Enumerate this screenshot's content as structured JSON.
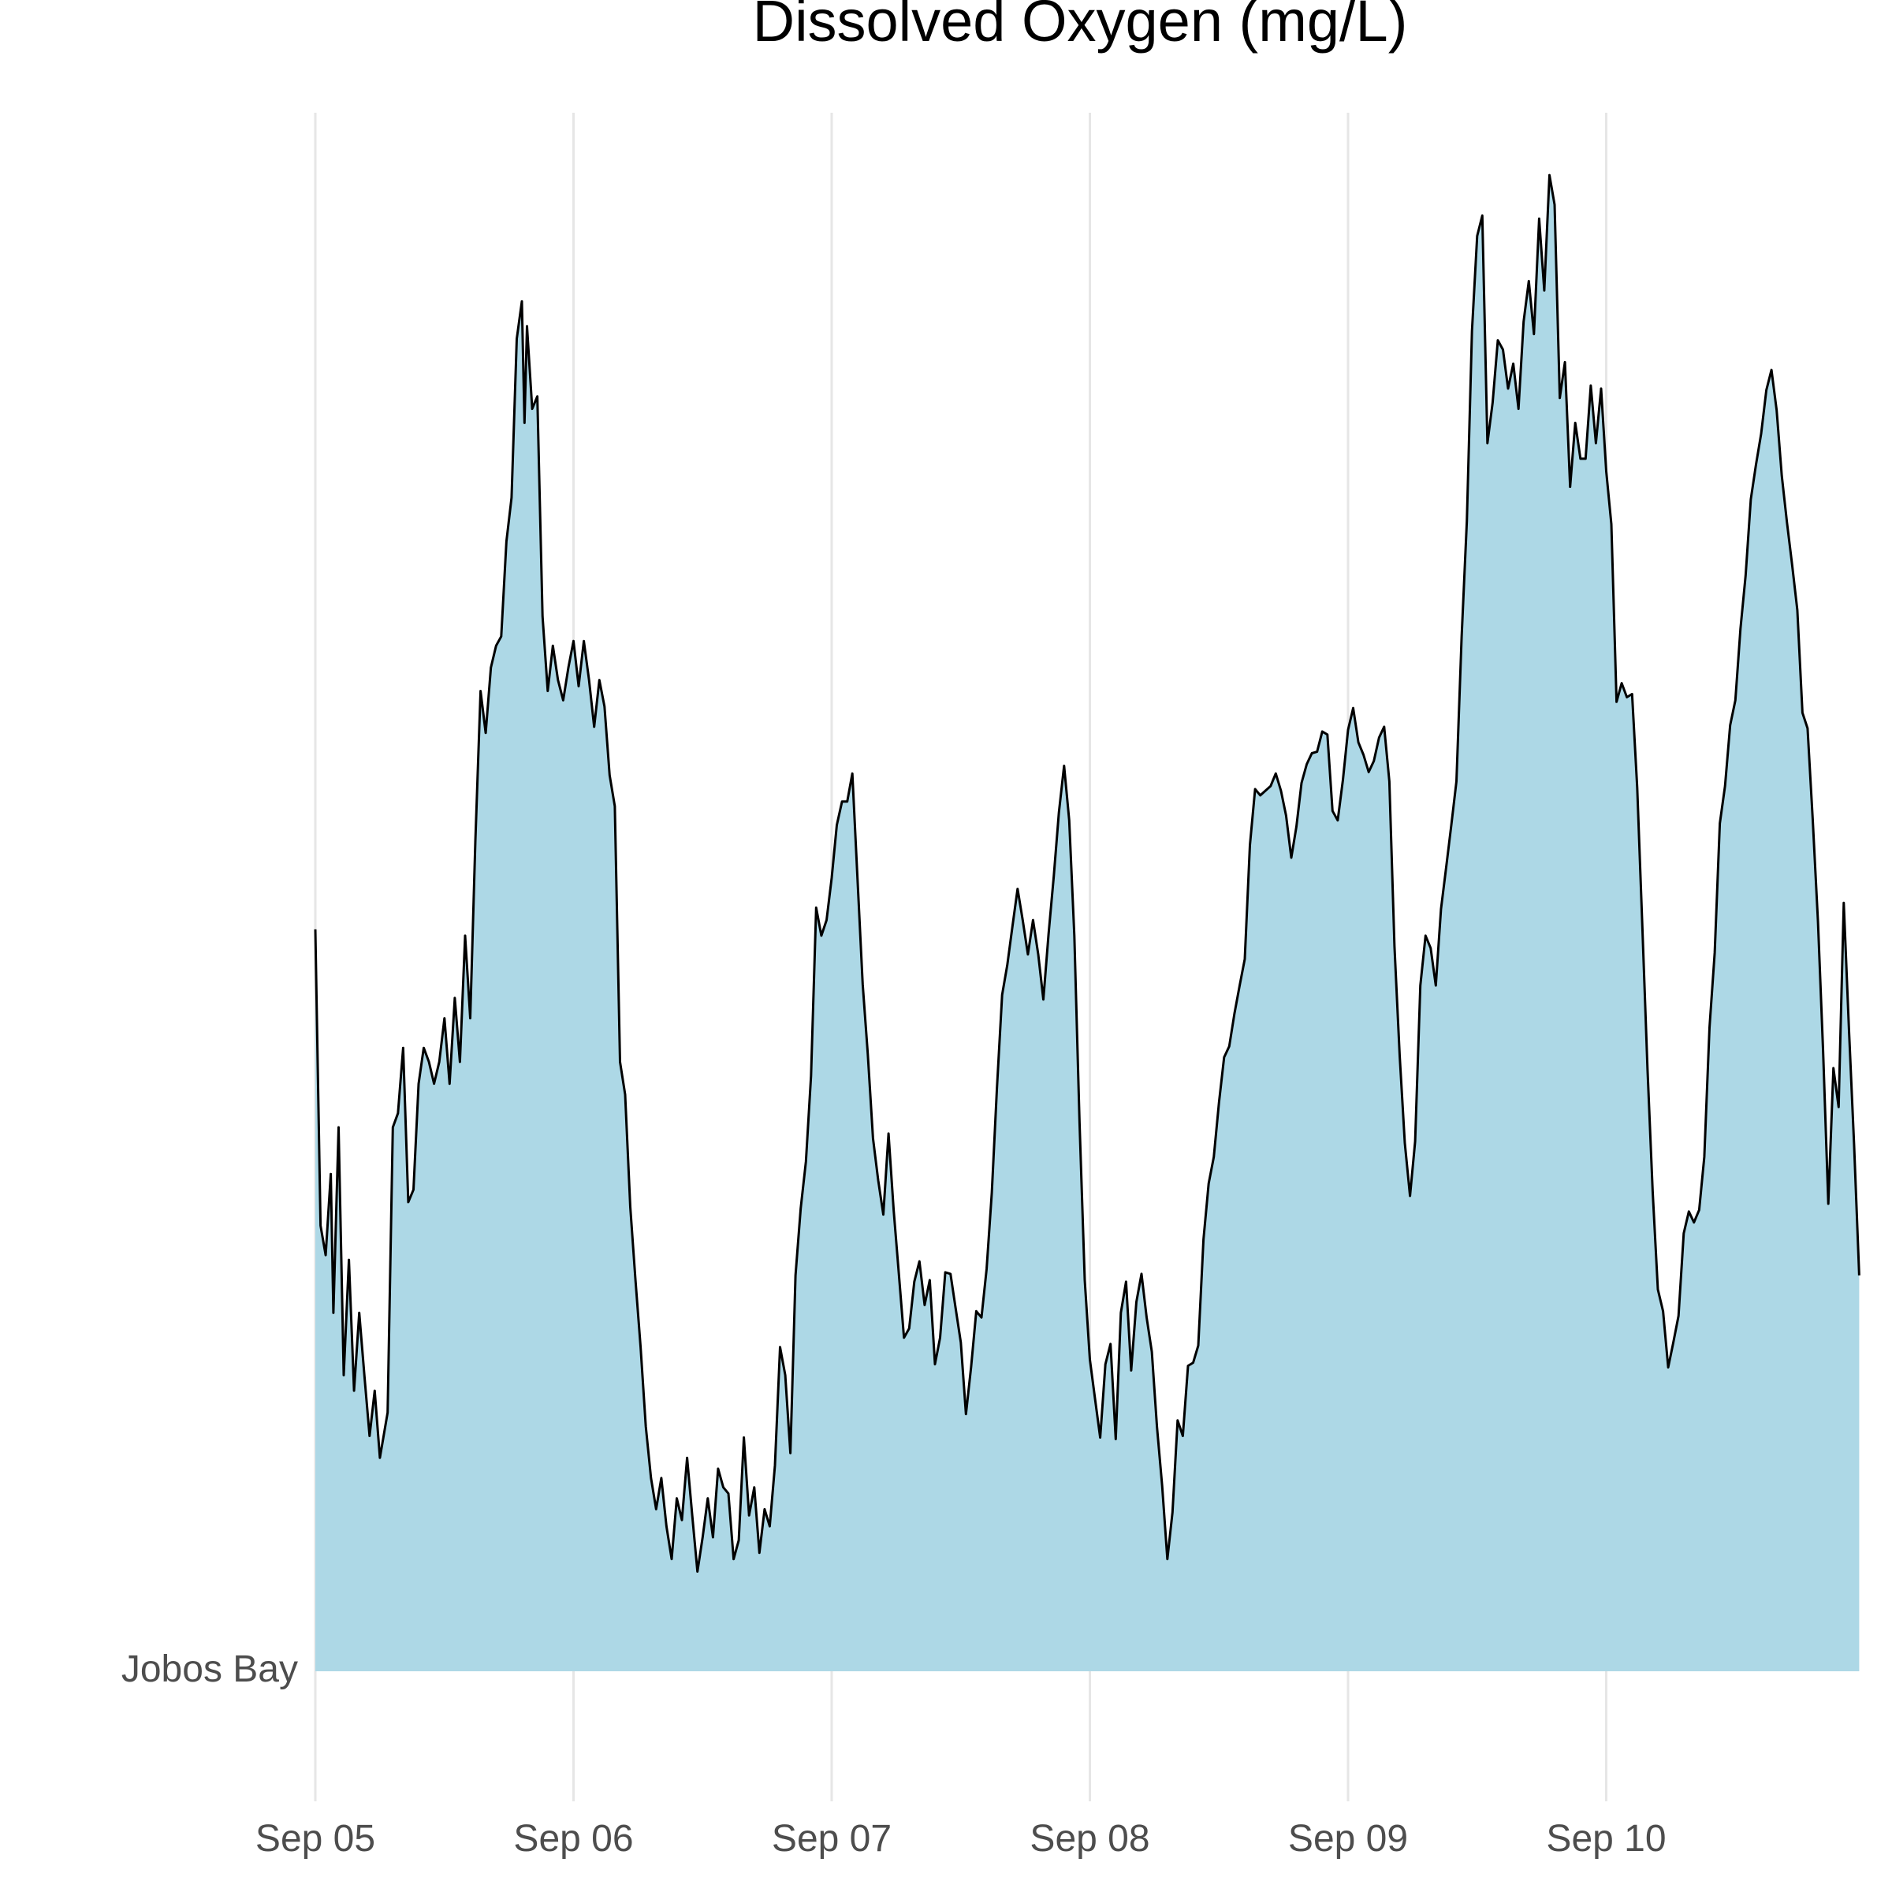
{
  "chart_data": {
    "type": "area",
    "title": "Dissolved Oxygen (mg/L)",
    "xlabel": "",
    "ylabel": "",
    "y_category_label": "Jobos Bay",
    "x_ticks": [
      "Sep 05",
      "Sep 06",
      "Sep 07",
      "Sep 08",
      "Sep 09",
      "Sep 10"
    ],
    "x_tick_dates": [
      "2020-09-05",
      "2020-09-06",
      "2020-09-07",
      "2020-09-08",
      "2020-09-09",
      "2020-09-10"
    ],
    "x_range": [
      "2020-09-05T00:00",
      "2020-09-10T23:45"
    ],
    "grid": "vertical",
    "legend": "none",
    "colors": {
      "fill": "#add8e6",
      "line": "#000000",
      "grid": "#e6e6e6"
    },
    "series": [
      {
        "values_relative_height": [
          [
            0.0,
            0.476
          ],
          [
            0.02,
            0.286
          ],
          [
            0.04,
            0.267
          ],
          [
            0.06,
            0.319
          ],
          [
            0.07,
            0.23
          ],
          [
            0.09,
            0.349
          ],
          [
            0.11,
            0.19
          ],
          [
            0.13,
            0.264
          ],
          [
            0.15,
            0.18
          ],
          [
            0.17,
            0.23
          ],
          [
            0.19,
            0.19
          ],
          [
            0.21,
            0.151
          ],
          [
            0.23,
            0.18
          ],
          [
            0.25,
            0.137
          ],
          [
            0.28,
            0.166
          ],
          [
            0.3,
            0.349
          ],
          [
            0.32,
            0.358
          ],
          [
            0.34,
            0.4
          ],
          [
            0.36,
            0.301
          ],
          [
            0.38,
            0.309
          ],
          [
            0.4,
            0.377
          ],
          [
            0.42,
            0.4
          ],
          [
            0.44,
            0.391
          ],
          [
            0.46,
            0.377
          ],
          [
            0.48,
            0.391
          ],
          [
            0.5,
            0.419
          ],
          [
            0.52,
            0.377
          ],
          [
            0.54,
            0.432
          ],
          [
            0.56,
            0.391
          ],
          [
            0.58,
            0.472
          ],
          [
            0.6,
            0.419
          ],
          [
            0.62,
            0.533
          ],
          [
            0.64,
            0.629
          ],
          [
            0.66,
            0.602
          ],
          [
            0.68,
            0.644
          ],
          [
            0.7,
            0.658
          ],
          [
            0.72,
            0.664
          ],
          [
            0.74,
            0.725
          ],
          [
            0.76,
            0.753
          ],
          [
            0.78,
            0.855
          ],
          [
            0.8,
            0.879
          ],
          [
            0.81,
            0.801
          ],
          [
            0.82,
            0.863
          ],
          [
            0.84,
            0.81
          ],
          [
            0.86,
            0.818
          ],
          [
            0.88,
            0.677
          ],
          [
            0.9,
            0.629
          ],
          [
            0.92,
            0.658
          ],
          [
            0.94,
            0.636
          ],
          [
            0.96,
            0.623
          ],
          [
            0.98,
            0.644
          ],
          [
            1.0,
            0.661
          ],
          [
            1.02,
            0.632
          ],
          [
            1.04,
            0.661
          ],
          [
            1.06,
            0.636
          ],
          [
            1.08,
            0.606
          ],
          [
            1.1,
            0.636
          ],
          [
            1.12,
            0.619
          ],
          [
            1.14,
            0.575
          ],
          [
            1.16,
            0.555
          ],
          [
            1.18,
            0.391
          ],
          [
            1.2,
            0.37
          ],
          [
            1.22,
            0.298
          ],
          [
            1.24,
            0.251
          ],
          [
            1.26,
            0.208
          ],
          [
            1.28,
            0.157
          ],
          [
            1.3,
            0.124
          ],
          [
            1.32,
            0.104
          ],
          [
            1.34,
            0.124
          ],
          [
            1.36,
            0.093
          ],
          [
            1.38,
            0.072
          ],
          [
            1.4,
            0.111
          ],
          [
            1.42,
            0.097
          ],
          [
            1.44,
            0.137
          ],
          [
            1.46,
            0.1
          ],
          [
            1.48,
            0.064
          ],
          [
            1.5,
            0.086
          ],
          [
            1.52,
            0.111
          ],
          [
            1.54,
            0.086
          ],
          [
            1.56,
            0.13
          ],
          [
            1.58,
            0.118
          ],
          [
            1.6,
            0.114
          ],
          [
            1.62,
            0.072
          ],
          [
            1.64,
            0.084
          ],
          [
            1.66,
            0.15
          ],
          [
            1.68,
            0.1
          ],
          [
            1.7,
            0.118
          ],
          [
            1.72,
            0.076
          ],
          [
            1.74,
            0.104
          ],
          [
            1.76,
            0.093
          ],
          [
            1.78,
            0.132
          ],
          [
            1.8,
            0.208
          ],
          [
            1.82,
            0.19
          ],
          [
            1.84,
            0.14
          ],
          [
            1.86,
            0.254
          ],
          [
            1.88,
            0.297
          ],
          [
            1.9,
            0.327
          ],
          [
            1.92,
            0.382
          ],
          [
            1.94,
            0.49
          ],
          [
            1.96,
            0.472
          ],
          [
            1.98,
            0.482
          ],
          [
            2.0,
            0.509
          ],
          [
            2.02,
            0.543
          ],
          [
            2.04,
            0.558
          ],
          [
            2.06,
            0.558
          ],
          [
            2.08,
            0.576
          ],
          [
            2.1,
            0.508
          ],
          [
            2.12,
            0.441
          ],
          [
            2.14,
            0.396
          ],
          [
            2.16,
            0.342
          ],
          [
            2.18,
            0.315
          ],
          [
            2.2,
            0.293
          ],
          [
            2.22,
            0.345
          ],
          [
            2.24,
            0.296
          ],
          [
            2.26,
            0.255
          ],
          [
            2.28,
            0.214
          ],
          [
            2.3,
            0.22
          ],
          [
            2.32,
            0.25
          ],
          [
            2.34,
            0.263
          ],
          [
            2.36,
            0.235
          ],
          [
            2.38,
            0.251
          ],
          [
            2.4,
            0.197
          ],
          [
            2.42,
            0.214
          ],
          [
            2.44,
            0.256
          ],
          [
            2.46,
            0.255
          ],
          [
            2.48,
            0.233
          ],
          [
            2.5,
            0.211
          ],
          [
            2.52,
            0.165
          ],
          [
            2.54,
            0.195
          ],
          [
            2.56,
            0.231
          ],
          [
            2.58,
            0.227
          ],
          [
            2.6,
            0.258
          ],
          [
            2.62,
            0.307
          ],
          [
            2.64,
            0.374
          ],
          [
            2.66,
            0.434
          ],
          [
            2.68,
            0.453
          ],
          [
            2.7,
            0.478
          ],
          [
            2.72,
            0.502
          ],
          [
            2.74,
            0.482
          ],
          [
            2.76,
            0.46
          ],
          [
            2.78,
            0.482
          ],
          [
            2.8,
            0.46
          ],
          [
            2.82,
            0.431
          ],
          [
            2.84,
            0.473
          ],
          [
            2.86,
            0.51
          ],
          [
            2.88,
            0.551
          ],
          [
            2.9,
            0.581
          ],
          [
            2.92,
            0.546
          ],
          [
            2.94,
            0.472
          ],
          [
            2.96,
            0.352
          ],
          [
            2.98,
            0.251
          ],
          [
            3.0,
            0.2
          ],
          [
            3.02,
            0.175
          ],
          [
            3.04,
            0.15
          ],
          [
            3.06,
            0.197
          ],
          [
            3.08,
            0.21
          ],
          [
            3.1,
            0.149
          ],
          [
            3.12,
            0.23
          ],
          [
            3.14,
            0.25
          ],
          [
            3.16,
            0.193
          ],
          [
            3.18,
            0.237
          ],
          [
            3.2,
            0.255
          ],
          [
            3.22,
            0.227
          ],
          [
            3.24,
            0.205
          ],
          [
            3.26,
            0.157
          ],
          [
            3.28,
            0.119
          ],
          [
            3.3,
            0.072
          ],
          [
            3.32,
            0.102
          ],
          [
            3.34,
            0.161
          ],
          [
            3.36,
            0.151
          ],
          [
            3.38,
            0.196
          ],
          [
            3.4,
            0.198
          ],
          [
            3.42,
            0.209
          ],
          [
            3.44,
            0.277
          ],
          [
            3.46,
            0.313
          ],
          [
            3.48,
            0.33
          ],
          [
            3.5,
            0.365
          ],
          [
            3.52,
            0.394
          ],
          [
            3.54,
            0.401
          ],
          [
            3.56,
            0.422
          ],
          [
            3.58,
            0.44
          ],
          [
            3.6,
            0.457
          ],
          [
            3.62,
            0.53
          ],
          [
            3.64,
            0.566
          ],
          [
            3.66,
            0.562
          ],
          [
            3.68,
            0.565
          ],
          [
            3.7,
            0.568
          ],
          [
            3.72,
            0.576
          ],
          [
            3.74,
            0.565
          ],
          [
            3.76,
            0.549
          ],
          [
            3.78,
            0.522
          ],
          [
            3.8,
            0.542
          ],
          [
            3.82,
            0.57
          ],
          [
            3.84,
            0.582
          ],
          [
            3.86,
            0.589
          ],
          [
            3.88,
            0.59
          ],
          [
            3.9,
            0.603
          ],
          [
            3.92,
            0.601
          ],
          [
            3.94,
            0.552
          ],
          [
            3.96,
            0.546
          ],
          [
            3.98,
            0.572
          ],
          [
            4.0,
            0.604
          ],
          [
            4.02,
            0.618
          ],
          [
            4.04,
            0.596
          ],
          [
            4.06,
            0.588
          ],
          [
            4.08,
            0.577
          ],
          [
            4.1,
            0.584
          ],
          [
            4.12,
            0.599
          ],
          [
            4.14,
            0.606
          ],
          [
            4.16,
            0.571
          ],
          [
            4.18,
            0.465
          ],
          [
            4.2,
            0.395
          ],
          [
            4.22,
            0.339
          ],
          [
            4.24,
            0.305
          ],
          [
            4.26,
            0.34
          ],
          [
            4.28,
            0.44
          ],
          [
            4.3,
            0.472
          ],
          [
            4.32,
            0.464
          ],
          [
            4.34,
            0.44
          ],
          [
            4.36,
            0.489
          ],
          [
            4.38,
            0.516
          ],
          [
            4.4,
            0.543
          ],
          [
            4.42,
            0.571
          ],
          [
            4.44,
            0.664
          ],
          [
            4.46,
            0.738
          ],
          [
            4.48,
            0.86
          ],
          [
            4.5,
            0.921
          ],
          [
            4.52,
            0.934
          ],
          [
            4.54,
            0.788
          ],
          [
            4.56,
            0.814
          ],
          [
            4.58,
            0.854
          ],
          [
            4.6,
            0.848
          ],
          [
            4.62,
            0.823
          ],
          [
            4.64,
            0.839
          ],
          [
            4.66,
            0.81
          ],
          [
            4.68,
            0.866
          ],
          [
            4.7,
            0.892
          ],
          [
            4.72,
            0.858
          ],
          [
            4.74,
            0.932
          ],
          [
            4.76,
            0.886
          ],
          [
            4.78,
            0.96
          ],
          [
            4.8,
            0.941
          ],
          [
            4.82,
            0.817
          ],
          [
            4.84,
            0.84
          ],
          [
            4.86,
            0.76
          ],
          [
            4.88,
            0.801
          ],
          [
            4.9,
            0.778
          ],
          [
            4.92,
            0.778
          ],
          [
            4.94,
            0.825
          ],
          [
            4.96,
            0.788
          ],
          [
            4.98,
            0.823
          ],
          [
            5.0,
            0.77
          ],
          [
            5.02,
            0.736
          ],
          [
            5.04,
            0.622
          ],
          [
            5.06,
            0.634
          ],
          [
            5.08,
            0.625
          ],
          [
            5.1,
            0.627
          ],
          [
            5.12,
            0.567
          ],
          [
            5.14,
            0.478
          ],
          [
            5.16,
            0.386
          ],
          [
            5.18,
            0.308
          ],
          [
            5.2,
            0.245
          ],
          [
            5.22,
            0.231
          ],
          [
            5.24,
            0.195
          ],
          [
            5.26,
            0.211
          ],
          [
            5.28,
            0.228
          ],
          [
            5.3,
            0.281
          ],
          [
            5.32,
            0.295
          ],
          [
            5.34,
            0.288
          ],
          [
            5.36,
            0.296
          ],
          [
            5.38,
            0.33
          ],
          [
            5.4,
            0.413
          ],
          [
            5.42,
            0.461
          ],
          [
            5.44,
            0.544
          ],
          [
            5.46,
            0.568
          ],
          [
            5.48,
            0.607
          ],
          [
            5.5,
            0.623
          ],
          [
            5.52,
            0.669
          ],
          [
            5.54,
            0.703
          ],
          [
            5.56,
            0.752
          ],
          [
            5.58,
            0.774
          ],
          [
            5.6,
            0.794
          ],
          [
            5.62,
            0.822
          ],
          [
            5.64,
            0.835
          ],
          [
            5.66,
            0.809
          ],
          [
            5.68,
            0.767
          ],
          [
            5.7,
            0.737
          ],
          [
            5.72,
            0.71
          ],
          [
            5.74,
            0.681
          ],
          [
            5.76,
            0.615
          ],
          [
            5.78,
            0.605
          ],
          [
            5.8,
            0.546
          ],
          [
            5.82,
            0.481
          ],
          [
            5.84,
            0.398
          ],
          [
            5.86,
            0.3
          ],
          [
            5.88,
            0.387
          ],
          [
            5.9,
            0.362
          ],
          [
            5.92,
            0.493
          ],
          [
            5.94,
            0.412
          ],
          [
            5.96,
            0.338
          ],
          [
            5.98,
            0.254
          ]
        ]
      }
    ]
  }
}
